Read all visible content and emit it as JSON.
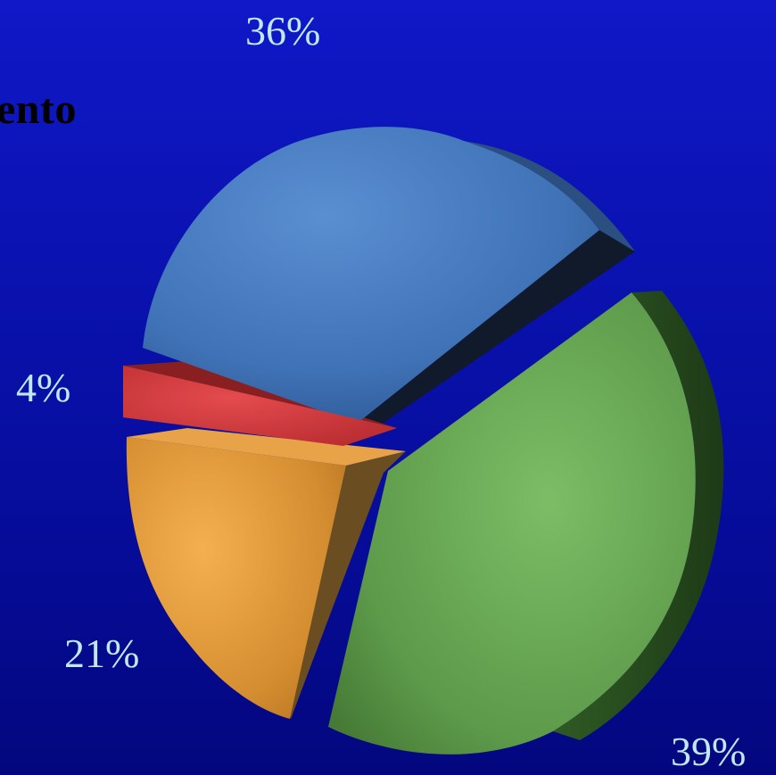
{
  "chart_data": {
    "type": "pie",
    "title": "ento",
    "slices": [
      {
        "label": "36%",
        "value": 36,
        "color": "#4a7fc6"
      },
      {
        "label": "39%",
        "value": 39,
        "color": "#6fb05a"
      },
      {
        "label": "21%",
        "value": 21,
        "color": "#f0a540"
      },
      {
        "label": "4%",
        "value": 4,
        "color": "#d8353a"
      }
    ],
    "legend": "none",
    "exploded": true,
    "style": "3d"
  }
}
